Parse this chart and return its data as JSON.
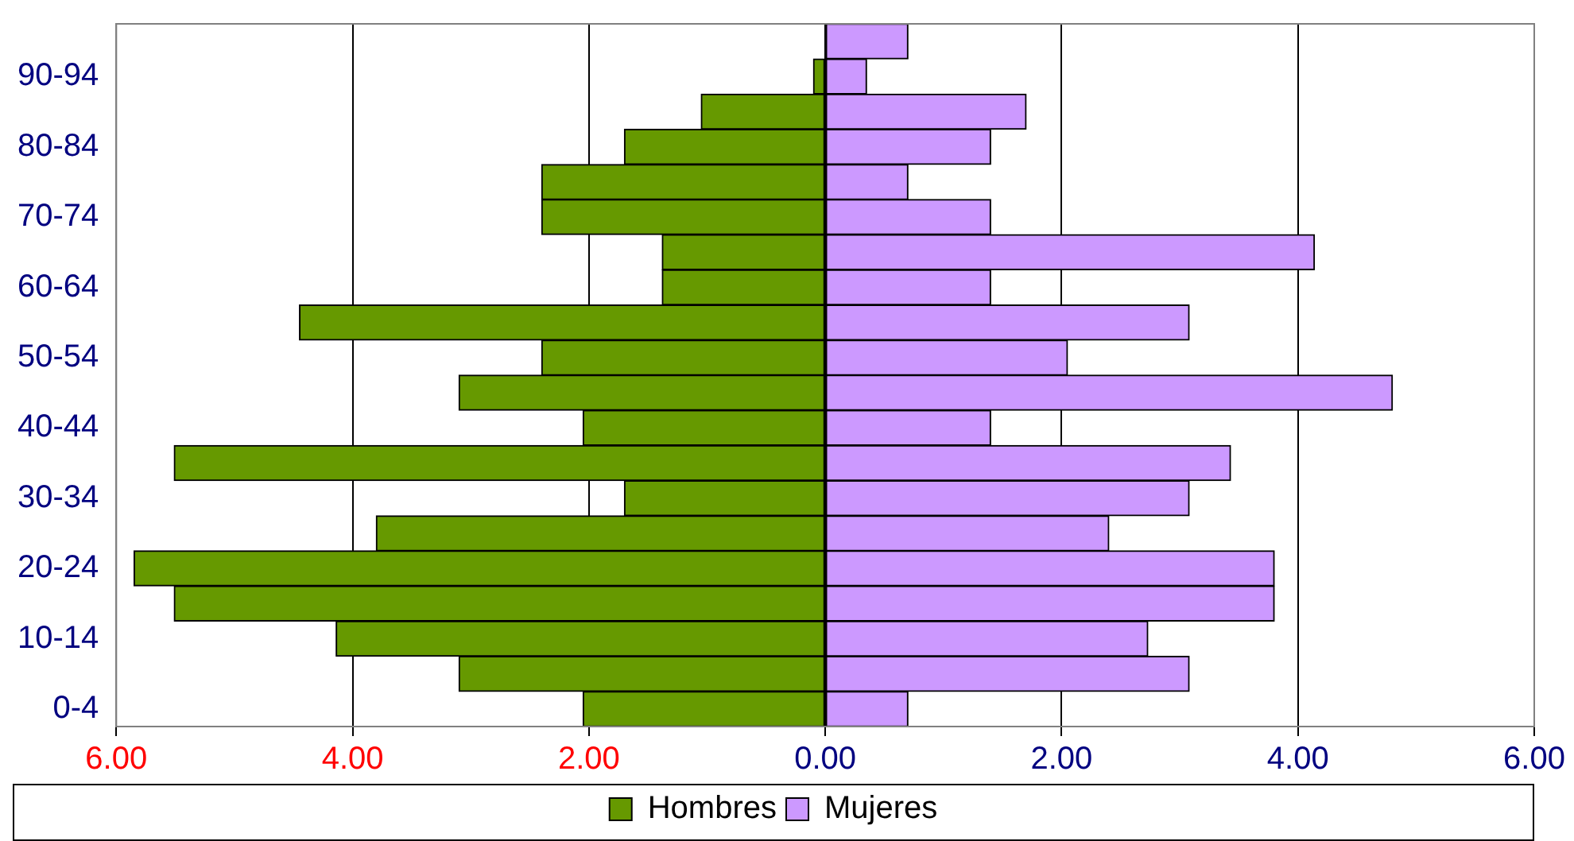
{
  "chart_data": {
    "type": "bar",
    "orientation": "horizontal",
    "stacked": true,
    "categories": [
      null,
      "90-94",
      null,
      "80-84",
      null,
      "70-74",
      null,
      "60-64",
      null,
      "50-54",
      null,
      "40-44",
      null,
      "30-34",
      null,
      "20-24",
      null,
      "10-14",
      null,
      "0-4"
    ],
    "series": [
      {
        "name": "Hombres",
        "color": "#669900",
        "values": [
          0,
          -0.1,
          -1.05,
          -1.7,
          -2.4,
          -2.4,
          -1.38,
          -1.38,
          -4.45,
          -2.4,
          -3.1,
          -2.05,
          -5.51,
          -1.7,
          -3.8,
          -5.85,
          -5.51,
          -4.14,
          -3.1,
          -2.05
        ]
      },
      {
        "name": "Mujeres",
        "color": "#cc99ff",
        "values": [
          0.7,
          0.35,
          1.7,
          1.4,
          0.7,
          1.4,
          4.14,
          1.4,
          3.08,
          2.05,
          4.8,
          1.4,
          3.43,
          3.08,
          2.4,
          3.8,
          3.8,
          2.73,
          3.08,
          0.7
        ]
      }
    ],
    "xlim": [
      -6,
      6
    ],
    "xticks": [
      {
        "value": -6,
        "label": "6.00"
      },
      {
        "value": -4,
        "label": "4.00"
      },
      {
        "value": -2,
        "label": "2.00"
      },
      {
        "value": 0,
        "label": "0.00"
      },
      {
        "value": 2,
        "label": "2.00"
      },
      {
        "value": 4,
        "label": "4.00"
      },
      {
        "value": 6,
        "label": "6.00"
      }
    ],
    "grid": "x",
    "legend": "bottom"
  }
}
